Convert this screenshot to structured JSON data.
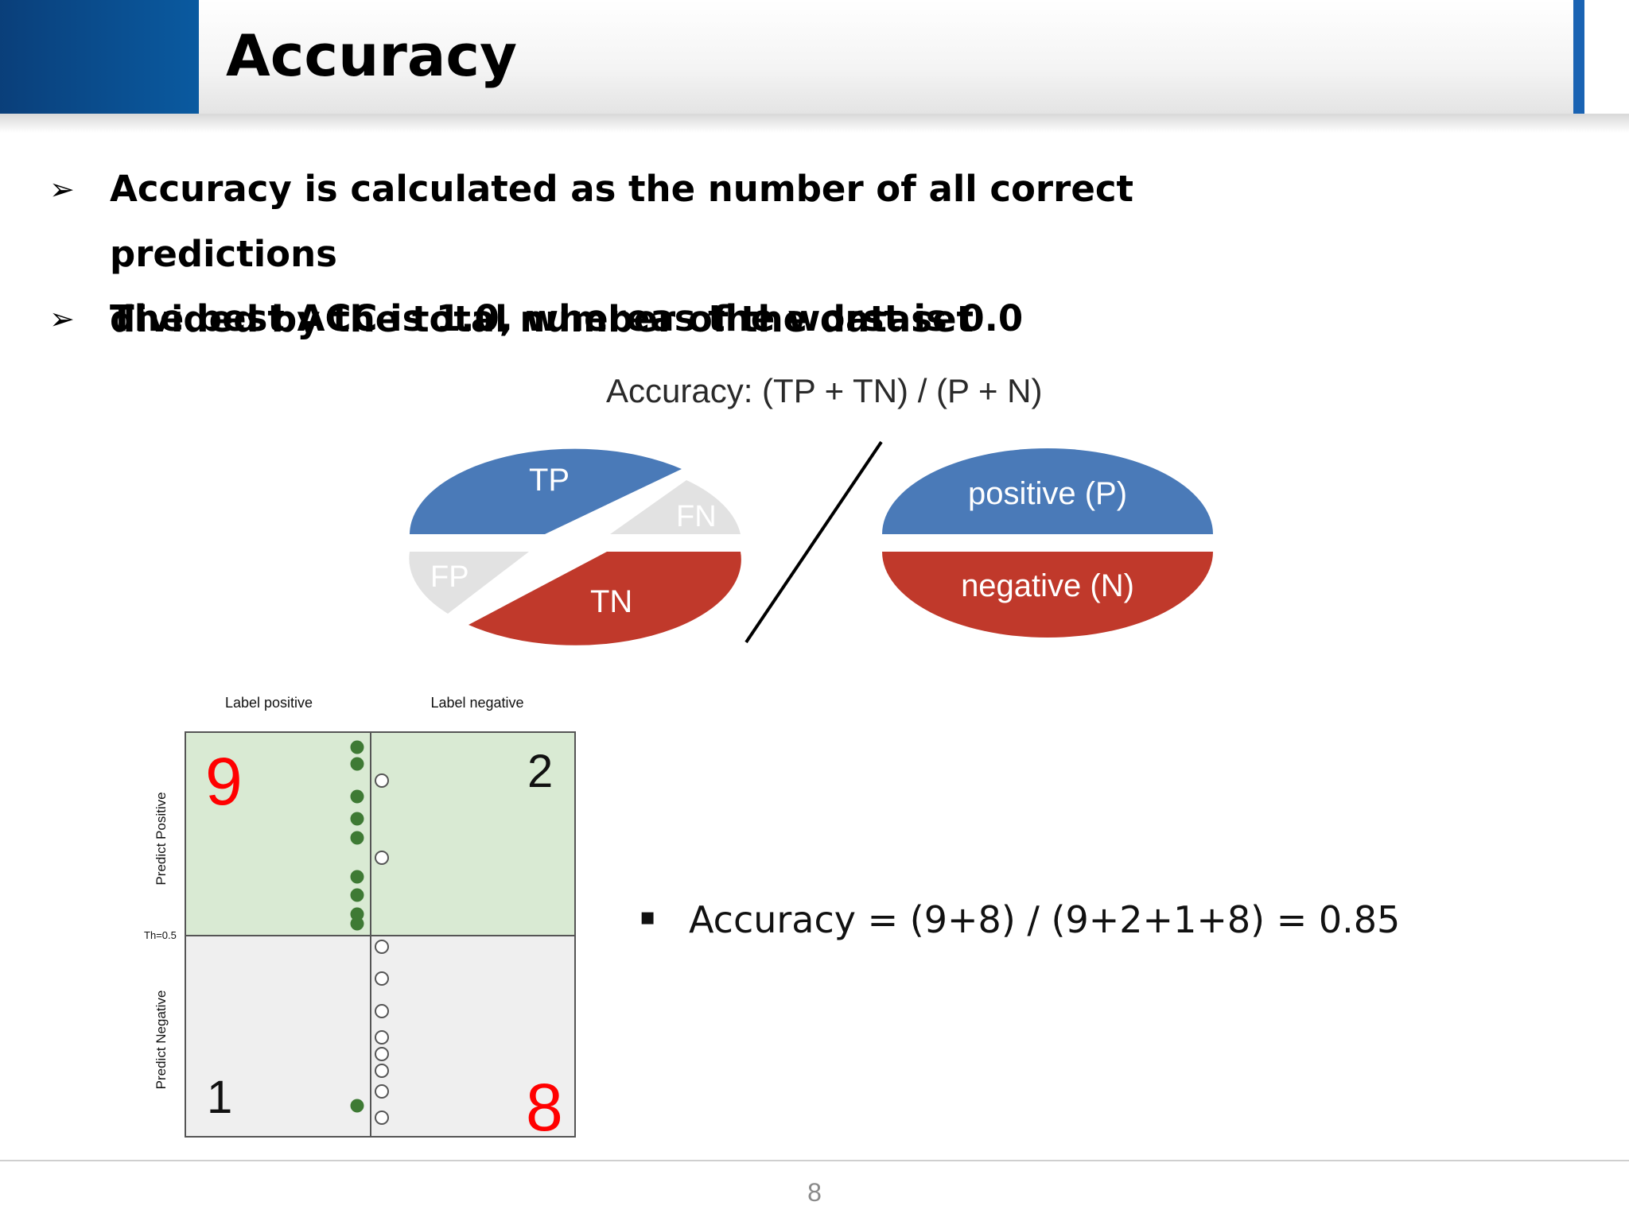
{
  "slide": {
    "title": "Accuracy",
    "bullets": [
      {
        "arrow": "➢",
        "line1": "Accuracy is calculated as the number of all correct predictions",
        "line2": "divided by the total number of the dataset"
      },
      {
        "arrow": "➢",
        "line1": "The best ACC is 1.0, whereas the worst is 0.0"
      }
    ],
    "formula": "Accuracy: (TP + TN) / (P + N)",
    "pie": {
      "tp": "TP",
      "fn": "FN",
      "fp": "FP",
      "tn": "TN",
      "positive": "positive (P)",
      "negative": "negative (N)",
      "colors": {
        "blue": "#4a7ab8",
        "red": "#c0392b",
        "gray": "#e2e2e2"
      }
    },
    "matrix": {
      "col_label_positive": "Label positive",
      "col_label_negative": "Label negative",
      "row_label_positive": "Predict Positive",
      "row_label_negative": "Predict Negative",
      "threshold": "Th=0.5",
      "tp_count": "9",
      "fp_count": "2",
      "fn_count": "1",
      "tn_count": "8",
      "colors": {
        "top": "#d9ead3",
        "bottom": "#efefef",
        "dot": "#3e7a34",
        "highlight": "#ff0000"
      }
    },
    "accuracy_bullet": "▪",
    "accuracy_result": "Accuracy = (9+8) / (9+2+1+8) = 0.85",
    "page_number": "8"
  }
}
